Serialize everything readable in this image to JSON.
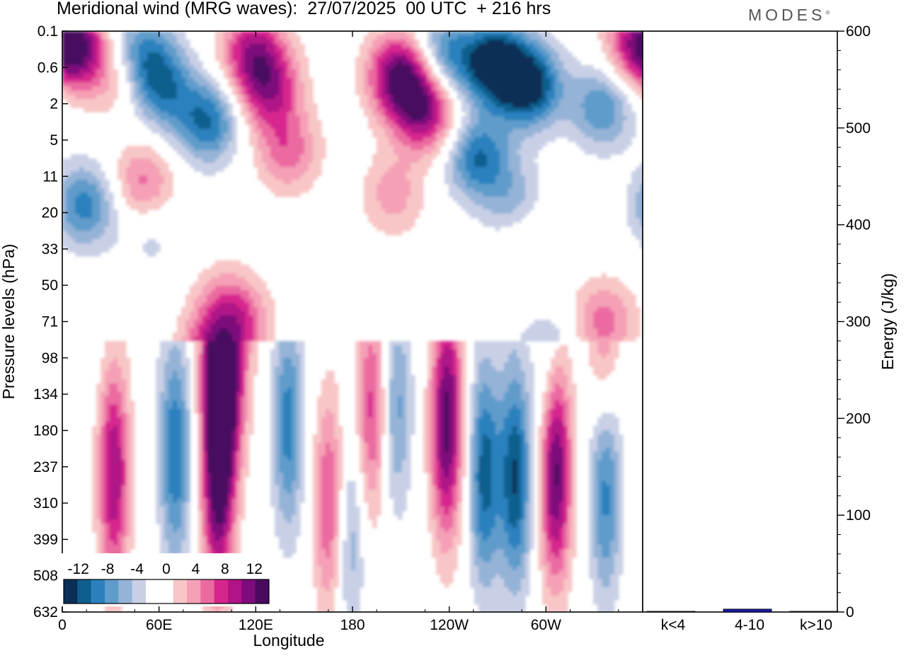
{
  "header": {
    "title": "Meridional wind (MRG waves):  27/07/2025  00 UTC  + 216 hrs",
    "brand": "MODES",
    "brand_mark": "®"
  },
  "chart_data": [
    {
      "type": "heatmap",
      "name": "meridional-wind-hovmoller",
      "xlabel": "Longitude",
      "ylabel": "Pressure levels (hPa)",
      "x_tick_labels": [
        "0",
        "60E",
        "120E",
        "180",
        "120W",
        "60W"
      ],
      "x_tick_degrees": [
        0,
        60,
        120,
        180,
        240,
        300
      ],
      "x_range_degrees": [
        0,
        360
      ],
      "y_tick_labels": [
        "0.1",
        "0.6",
        "2",
        "5",
        "11",
        "20",
        "33",
        "50",
        "71",
        "98",
        "134",
        "180",
        "237",
        "310",
        "399",
        "508",
        "632"
      ],
      "colorbar": {
        "labels": [
          "-12",
          "-8",
          "-4",
          "0",
          "4",
          "8",
          "12"
        ],
        "label_levels": [
          -12,
          -8,
          -4,
          0,
          4,
          8,
          12
        ],
        "levels": [
          -14,
          -12,
          -10,
          -8,
          -6,
          -4,
          -2,
          0,
          2,
          4,
          6,
          8,
          10,
          12,
          14
        ],
        "colors": [
          "#0b2f55",
          "#0e5f8e",
          "#2a81bd",
          "#5e9ccb",
          "#95b3d7",
          "#c9d0e6",
          "#ffffff",
          "#ffffff",
          "#f8c6c6",
          "#f5a0b6",
          "#eb6aa0",
          "#d7258e",
          "#b01487",
          "#7e0b7b",
          "#4a0a5e"
        ]
      },
      "wave_features": [
        {
          "lon": 12,
          "lev": 0.45,
          "amp": 14
        },
        {
          "lon": 35,
          "lev": 1.1,
          "amp": 8
        },
        {
          "lon": 28,
          "lev": 0.6,
          "amp": -6
        },
        {
          "lon": 62,
          "lev": 1.6,
          "amp": -8
        },
        {
          "lon": 50,
          "lev": 0.7,
          "amp": -9
        },
        {
          "lon": 90,
          "lev": 2.5,
          "amp": -10
        },
        {
          "lon": 118,
          "lev": 0.5,
          "amp": 10
        },
        {
          "lon": 128,
          "lev": 1.6,
          "amp": 10
        },
        {
          "lon": 140,
          "lev": 3.3,
          "amp": 7
        },
        {
          "lon": 110,
          "lev": 8.0,
          "amp": 6
        },
        {
          "lon": 210,
          "lev": 1.2,
          "amp": 15
        },
        {
          "lon": 225,
          "lev": 2.2,
          "amp": 12
        },
        {
          "lon": 236,
          "lev": 0.7,
          "amp": -9
        },
        {
          "lon": 268,
          "lev": 0.9,
          "amp": -14
        },
        {
          "lon": 290,
          "lev": 1.5,
          "amp": -13
        },
        {
          "lon": 258,
          "lev": 3.5,
          "amp": -10
        },
        {
          "lon": 282,
          "lev": 4.8,
          "amp": -6
        },
        {
          "lon": 335,
          "lev": 2.1,
          "amp": -8
        },
        {
          "lon": 355,
          "lev": 0.4,
          "amp": 8
        },
        {
          "lon": 14,
          "lev": 4.8,
          "amp": -9
        },
        {
          "lon": 50,
          "lev": 4.2,
          "amp": 7
        },
        {
          "lon": 100,
          "lev": 7.5,
          "amp": 4
        },
        {
          "lon": 205,
          "lev": 4.5,
          "amp": 5
        },
        {
          "lon": 290,
          "lev": 5.5,
          "amp": 4
        },
        {
          "lon": 32,
          "lev": 12.2,
          "amp": 12
        },
        {
          "lon": 70,
          "lev": 11.6,
          "amp": -10
        },
        {
          "lon": 100,
          "lev": 10.0,
          "amp": 14
        },
        {
          "lon": 94,
          "lev": 8.8,
          "amp": 8
        },
        {
          "lon": 96,
          "lev": 12.8,
          "amp": 11
        },
        {
          "lon": 140,
          "lev": 10.8,
          "amp": -9
        },
        {
          "lon": 166,
          "lev": 13.0,
          "amp": 9
        },
        {
          "lon": 178,
          "lev": 13.8,
          "amp": -6
        },
        {
          "lon": 192,
          "lev": 10.4,
          "amp": 9
        },
        {
          "lon": 207,
          "lev": 10.2,
          "amp": -7
        },
        {
          "lon": 238,
          "lev": 11.2,
          "amp": 11
        },
        {
          "lon": 262,
          "lev": 12.2,
          "amp": -11
        },
        {
          "lon": 281,
          "lev": 12.3,
          "amp": -12
        },
        {
          "lon": 306,
          "lev": 12.1,
          "amp": 15
        },
        {
          "lon": 337,
          "lev": 12.6,
          "amp": -9
        },
        {
          "lon": 240,
          "lev": 9.6,
          "amp": 5
        },
        {
          "lon": 336,
          "lev": 8.0,
          "amp": 7
        },
        {
          "lon": 55,
          "lev": 5.6,
          "amp": -3
        },
        {
          "lon": 300,
          "lev": 8.8,
          "amp": -4
        }
      ]
    },
    {
      "type": "bar",
      "name": "energy-by-wavenumber",
      "categories": [
        "k<4",
        "4-10",
        "k>10"
      ],
      "values": [
        0,
        3,
        0
      ],
      "ylabel": "Energy (J/kg)",
      "ylim": [
        0,
        600
      ],
      "y_ticks": [
        0,
        100,
        200,
        300,
        400,
        500,
        600
      ],
      "bar_color": "#1a1aa8"
    }
  ]
}
